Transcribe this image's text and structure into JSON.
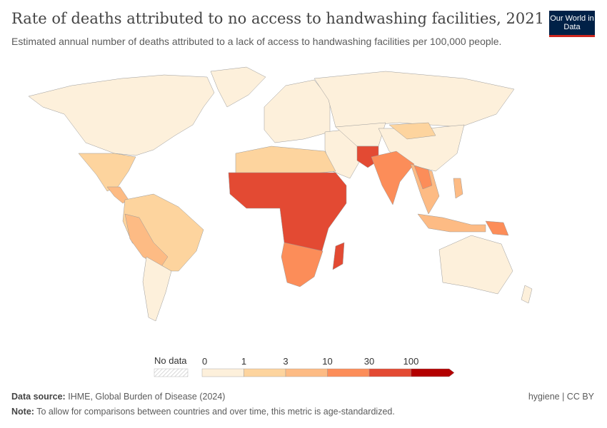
{
  "header": {
    "title": "Rate of deaths attributed to no access to handwashing facilities, 2021",
    "subtitle": "Estimated annual number of deaths attributed to a lack of access to handwashing facilities per 100,000 people.",
    "logo": "Our World in Data"
  },
  "chart_data": {
    "type": "choropleth-map",
    "title": "Rate of deaths attributed to no access to handwashing facilities, 2021",
    "legend": {
      "no_data_label": "No data",
      "no_data_color": "#e8e8e8",
      "ticks": [
        "0",
        "1",
        "3",
        "10",
        "30",
        "100"
      ],
      "bins": [
        {
          "min": 0,
          "max": 1,
          "color": "#fdf0db"
        },
        {
          "min": 1,
          "max": 3,
          "color": "#fdd49e"
        },
        {
          "min": 3,
          "max": 10,
          "color": "#fdbb84"
        },
        {
          "min": 10,
          "max": 30,
          "color": "#fc8d59"
        },
        {
          "min": 30,
          "max": 100,
          "color": "#e34a33"
        },
        {
          "min": 100,
          "max": null,
          "color": "#b30000"
        }
      ]
    }
  },
  "footer": {
    "source_label": "Data source:",
    "source": "IHME, Global Burden of Disease (2024)",
    "note_label": "Note:",
    "note": "To allow for comparisons between countries and over time, this metric is age-standardized.",
    "license": "hygiene | CC BY"
  }
}
